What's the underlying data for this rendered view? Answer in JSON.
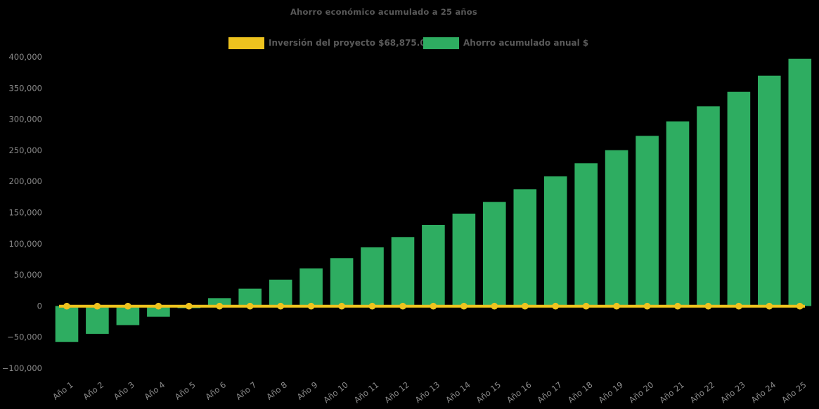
{
  "page": {
    "background_color": "#000000"
  },
  "header": {
    "title": "Ahorro económico acumulado a 25 años"
  },
  "legend": {
    "items": [
      {
        "label": "Inversión del proyecto $68,875.00",
        "color": "#EEC31E",
        "series_type": "line"
      },
      {
        "label": "Ahorro acumulado anual $",
        "color": "#2EAD61",
        "series_type": "bar"
      }
    ]
  },
  "chart_data": {
    "type": "bar",
    "title": "Ahorro económico acumulado a 25 años",
    "categories": [
      "Año 1",
      "Año 2",
      "Año 3",
      "Año 4",
      "Año 5",
      "Año 6",
      "Año 7",
      "Año 8",
      "Año 9",
      "Año 10",
      "Año 11",
      "Año 12",
      "Año 13",
      "Año 14",
      "Año 15",
      "Año 16",
      "Año 17",
      "Año 18",
      "Año 19",
      "Año 20",
      "Año 21",
      "Año 22",
      "Año 23",
      "Año 24",
      "Año 25"
    ],
    "series": [
      {
        "name": "Ahorro acumulado anual $",
        "type": "bar",
        "color": "#2EAD61",
        "values": [
          -57900,
          -44700,
          -30800,
          -17300,
          -3500,
          12500,
          27900,
          42300,
          60300,
          76900,
          94100,
          110700,
          130300,
          148300,
          167200,
          187500,
          208100,
          229200,
          250200,
          273300,
          296500,
          320600,
          343900,
          369900,
          397000
        ]
      },
      {
        "name": "Inversión del proyecto $68,875.00",
        "type": "line",
        "color": "#EEC31E",
        "marker": "circle",
        "constant_value": 0,
        "values": [
          0,
          0,
          0,
          0,
          0,
          0,
          0,
          0,
          0,
          0,
          0,
          0,
          0,
          0,
          0,
          0,
          0,
          0,
          0,
          0,
          0,
          0,
          0,
          0,
          0
        ]
      }
    ],
    "xlabel": "",
    "ylabel": "",
    "ylim": [
      -100000,
      400000
    ],
    "yticks": [
      {
        "value": 400000,
        "label": "400,000"
      },
      {
        "value": 350000,
        "label": "350,000"
      },
      {
        "value": 300000,
        "label": "300,000"
      },
      {
        "value": 250000,
        "label": "250,000"
      },
      {
        "value": 200000,
        "label": "200,000"
      },
      {
        "value": 150000,
        "label": "150,000"
      },
      {
        "value": 100000,
        "label": "100,000"
      },
      {
        "value": 50000,
        "label": "50,000"
      },
      {
        "value": 0,
        "label": "0"
      },
      {
        "value": -50000,
        "label": "−50,000"
      },
      {
        "value": -100000,
        "label": "−100,000"
      }
    ],
    "grid": false,
    "legend_position": "top-center",
    "tick_color": "#8A8A8A",
    "background": "#000000"
  }
}
